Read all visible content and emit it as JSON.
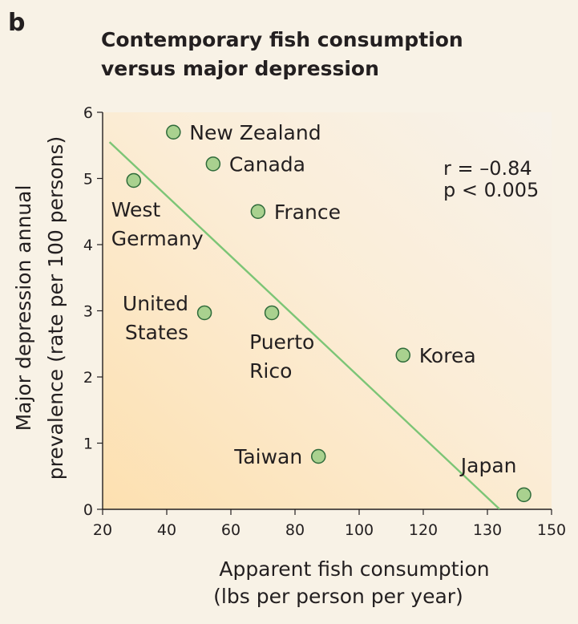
{
  "panel_letter": "b",
  "chart_data": {
    "type": "scatter",
    "title": [
      "Contemporary fish consumption",
      "versus major depression"
    ],
    "xlabel": [
      "Apparent fish consumption",
      "(lbs per person per year)"
    ],
    "ylabel": [
      "Major depression annual",
      "prevalence (rate per 100 persons)"
    ],
    "xlim": [
      20,
      150
    ],
    "ylim": [
      0,
      6
    ],
    "x_ticks": [
      {
        "value": 20,
        "label": "20"
      },
      {
        "value": 40,
        "label": "40"
      },
      {
        "value": 60,
        "label": "60"
      },
      {
        "value": 80,
        "label": "80"
      },
      {
        "value": 100,
        "label": "100"
      },
      {
        "value": 120,
        "label": "120"
      },
      {
        "value": 130,
        "label": "130"
      },
      {
        "value": 150,
        "label": "150"
      }
    ],
    "y_ticks": [
      0,
      1,
      2,
      3,
      4,
      5,
      6
    ],
    "grid": false,
    "points": [
      {
        "country": [
          "New Zealand"
        ],
        "x": 40.5,
        "y": 5.7,
        "label_pos": "right"
      },
      {
        "country": [
          "Canada"
        ],
        "x": 52,
        "y": 5.22,
        "label_pos": "right"
      },
      {
        "country": [
          "West",
          "Germany"
        ],
        "x": 29,
        "y": 4.97,
        "label_pos": "below"
      },
      {
        "country": [
          "France"
        ],
        "x": 65,
        "y": 4.5,
        "label_pos": "right"
      },
      {
        "country": [
          "United",
          "States"
        ],
        "x": 49.5,
        "y": 2.97,
        "label_pos": "left"
      },
      {
        "country": [
          "Puerto",
          "Rico"
        ],
        "x": 69,
        "y": 2.97,
        "label_pos": "below"
      },
      {
        "country": [
          "Korea"
        ],
        "x": 107,
        "y": 2.33,
        "label_pos": "right"
      },
      {
        "country": [
          "Taiwan"
        ],
        "x": 82.5,
        "y": 0.8,
        "label_pos": "left"
      },
      {
        "country": [
          "Japan"
        ],
        "x": 142,
        "y": 0.22,
        "label_pos": "above"
      }
    ],
    "trendline": {
      "x": [
        22,
        135
      ],
      "y": [
        5.55,
        0.0
      ]
    },
    "annotations": [
      "r = –0.84",
      "p < 0.005"
    ],
    "colors": {
      "point_fill": "#a9d18f",
      "point_stroke": "#2f6b3a",
      "trendline": "#7cc576",
      "axis": "#231f20"
    }
  }
}
